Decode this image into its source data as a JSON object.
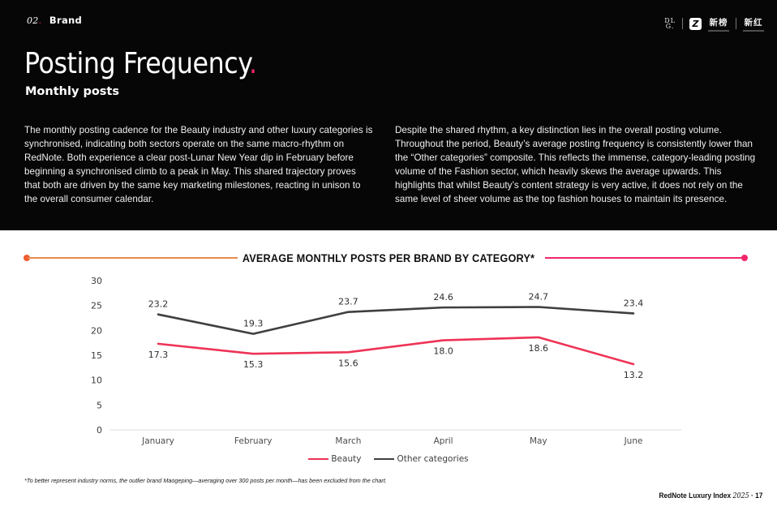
{
  "colors": {
    "hero_bg": "#060606",
    "accent_pink": "#F2256D",
    "accent_orange": "#E98B4E",
    "orange_dot": "#EF5A2E",
    "beauty_line": "#EE3356",
    "other_line": "#3F3F3F"
  },
  "header": {
    "section_number": "02",
    "section_dot": ".",
    "section_label": "Brand",
    "logos": {
      "dlg_line1": "DL",
      "dlg_line2": "G.",
      "newrank_icon_glyph": "Z",
      "newrank_label": "新榜",
      "xinhong_label": "新红"
    }
  },
  "title": {
    "text": "Posting Frequency",
    "accent_dot": ".",
    "subtitle": "Monthly posts"
  },
  "paragraphs": {
    "left": "The monthly posting cadence for the Beauty industry and other luxury categories is synchronised, indicating both sectors operate on the same macro-rhythm on RedNote. Both experience a clear post-Lunar New Year dip in February before beginning a synchronised climb to a peak in May. This shared trajectory proves that both are driven by the same key marketing milestones, reacting in unison to the overall consumer calendar.",
    "right": "Despite the shared rhythm, a key distinction lies in the overall posting volume. Throughout the period, Beauty’s average posting frequency is consistently lower than the “Other categories” composite. This reflects the immense, category-leading posting volume of the Fashion sector, which heavily skews the average upwards. This highlights that whilst Beauty’s content strategy is very active, it does not rely on the same level of sheer volume as the top fashion houses to maintain its presence."
  },
  "chart_data": {
    "type": "line",
    "title": "AVERAGE MONTHLY POSTS PER BRAND BY CATEGORY*",
    "categories": [
      "January",
      "February",
      "March",
      "April",
      "May",
      "June"
    ],
    "series": [
      {
        "name": "Beauty",
        "color": "#EE3356",
        "label_position": "below",
        "values": [
          17.3,
          15.3,
          15.6,
          18.0,
          18.6,
          13.2
        ]
      },
      {
        "name": "Other categories",
        "color": "#3F3F3F",
        "label_position": "above",
        "values": [
          23.2,
          19.3,
          23.7,
          24.6,
          24.7,
          23.4
        ]
      }
    ],
    "ylim": [
      0,
      30
    ],
    "yticks": [
      0,
      5,
      10,
      15,
      20,
      25,
      30
    ],
    "grid": false,
    "legend_position": "bottom"
  },
  "footnote": "*To better represent industry norms, the outlier brand Maogeping—averaging over 300 posts per month—has been excluded from the chart.",
  "footer": {
    "title": "RedNote Luxury Index",
    "year": "2025",
    "separator": "·",
    "page": "17"
  }
}
